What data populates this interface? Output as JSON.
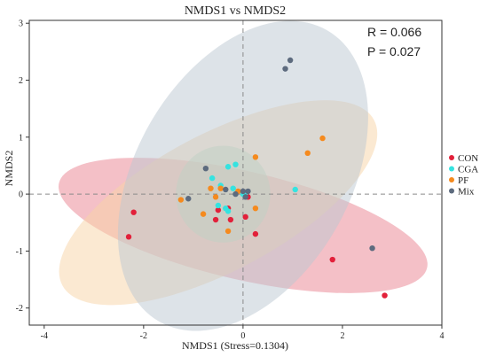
{
  "chart_data": {
    "type": "scatter",
    "title": "NMDS1 vs NMDS2",
    "xlabel": "NMDS1 (Stress=0.1304)",
    "ylabel": "NMDS2",
    "xlim": [
      -4.3,
      4.0
    ],
    "ylim": [
      -2.3,
      3.05
    ],
    "xticks": [
      -4,
      -2,
      0,
      2,
      4
    ],
    "yticks": [
      -2,
      -1,
      0,
      1,
      2,
      3
    ],
    "reference_lines": {
      "x": 0,
      "y": 0,
      "style": "dashed"
    },
    "annotations": {
      "r": "R = 0.066",
      "p": "P = 0.027"
    },
    "legend": {
      "position": "right"
    },
    "series": [
      {
        "name": "CON",
        "color": "#e2203a",
        "ellipse": {
          "cx": 0.0,
          "cy": -0.55,
          "rx": 3.8,
          "ry": 0.95,
          "angle_deg": -13,
          "fill": "#e9818f"
        },
        "points": [
          [
            -2.2,
            -0.32
          ],
          [
            -2.3,
            -0.75
          ],
          [
            -0.55,
            -0.45
          ],
          [
            -0.5,
            -0.28
          ],
          [
            -0.3,
            -0.25
          ],
          [
            -0.25,
            -0.45
          ],
          [
            0.05,
            -0.4
          ],
          [
            0.1,
            -0.05
          ],
          [
            0.25,
            -0.7
          ],
          [
            1.8,
            -1.15
          ],
          [
            2.85,
            -1.78
          ]
        ]
      },
      {
        "name": "CGA",
        "color": "#35e3e0",
        "ellipse": {
          "cx": -0.4,
          "cy": 0.0,
          "rx": 0.95,
          "ry": 0.85,
          "angle_deg": 0,
          "fill": "#8fe0c8"
        },
        "points": [
          [
            -0.62,
            0.28
          ],
          [
            -0.3,
            0.48
          ],
          [
            -0.15,
            0.52
          ],
          [
            -0.45,
            0.15
          ],
          [
            -0.2,
            0.1
          ],
          [
            -0.5,
            -0.2
          ],
          [
            -0.35,
            -0.25
          ],
          [
            -0.3,
            -0.3
          ],
          [
            0.0,
            0.0
          ],
          [
            0.05,
            0.02
          ],
          [
            1.05,
            0.08
          ]
        ]
      },
      {
        "name": "PF",
        "color": "#f58a1e",
        "ellipse": {
          "cx": -0.5,
          "cy": -0.15,
          "rx": 3.55,
          "ry": 1.2,
          "angle_deg": 28,
          "fill": "#f7d3a6"
        },
        "points": [
          [
            -1.25,
            -0.1
          ],
          [
            -0.8,
            -0.35
          ],
          [
            -0.65,
            0.1
          ],
          [
            -0.55,
            -0.05
          ],
          [
            -0.45,
            0.1
          ],
          [
            -0.3,
            -0.65
          ],
          [
            -0.1,
            0.05
          ],
          [
            0.25,
            0.65
          ],
          [
            0.25,
            -0.25
          ],
          [
            1.3,
            0.72
          ],
          [
            1.6,
            0.98
          ]
        ]
      },
      {
        "name": "Mix",
        "color": "#5d6b7e",
        "ellipse": {
          "cx": 0.0,
          "cy": 0.32,
          "rx": 2.15,
          "ry": 2.95,
          "angle_deg": -30,
          "fill": "#bcc7d2"
        },
        "points": [
          [
            -1.1,
            -0.08
          ],
          [
            -0.75,
            0.45
          ],
          [
            -0.35,
            0.08
          ],
          [
            -0.15,
            0.0
          ],
          [
            0.0,
            0.05
          ],
          [
            0.05,
            -0.05
          ],
          [
            0.1,
            0.05
          ],
          [
            0.85,
            2.2
          ],
          [
            0.95,
            2.35
          ],
          [
            2.6,
            -0.95
          ]
        ]
      }
    ]
  }
}
